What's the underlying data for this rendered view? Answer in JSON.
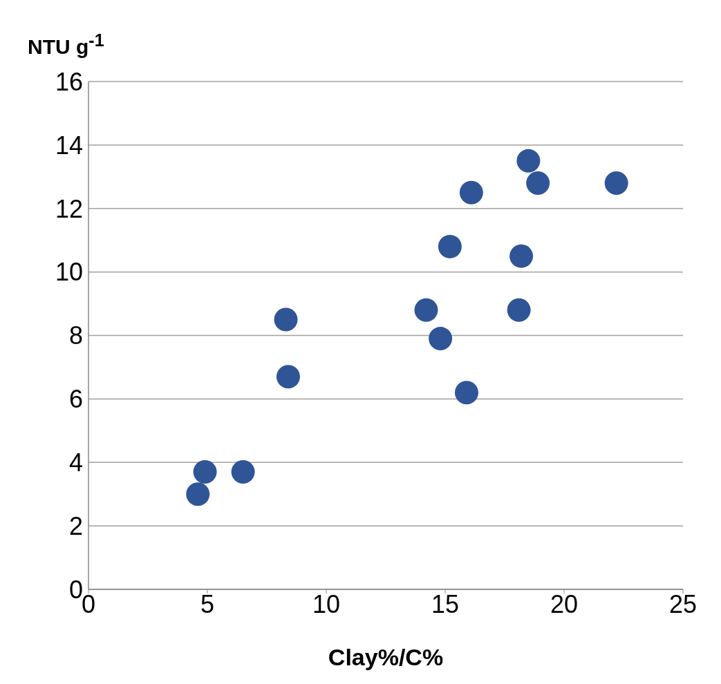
{
  "chart_data": {
    "type": "scatter",
    "ylabel": "NTU g$^{-1}$",
    "xlabel": "Clay%/C%",
    "xlim": [
      0,
      25
    ],
    "xticks": [
      0,
      5,
      10,
      15,
      20,
      25
    ],
    "ylim": [
      0,
      16
    ],
    "yticks": [
      0,
      2,
      4,
      6,
      8,
      10,
      12,
      14,
      16
    ],
    "grid": "y",
    "marker": "circle",
    "series": [
      {
        "color": "#2f5597",
        "x": [
          4.6,
          4.9,
          6.5,
          8.3,
          8.4,
          14.2,
          14.8,
          15.2,
          15.9,
          16.1,
          18.1,
          18.2,
          18.5,
          18.9,
          22.2
        ],
        "values": [
          3.0,
          3.7,
          3.7,
          8.5,
          6.7,
          8.8,
          7.9,
          10.8,
          6.2,
          12.5,
          8.8,
          10.5,
          13.5,
          12.8,
          12.8
        ]
      }
    ]
  }
}
